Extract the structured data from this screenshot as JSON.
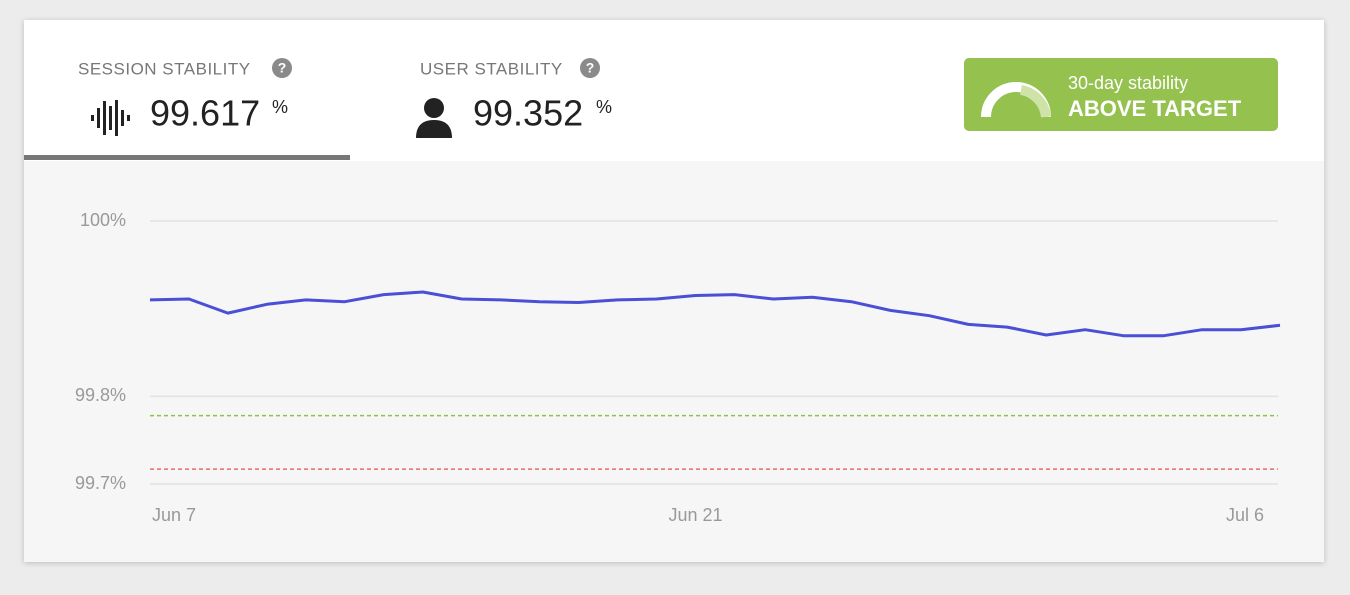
{
  "header": {
    "tabs": [
      {
        "label": "SESSION STABILITY",
        "help": "?",
        "value": "99.617",
        "unit": "%"
      },
      {
        "label": "USER STABILITY",
        "help": "?",
        "value": "99.352",
        "unit": "%"
      }
    ],
    "badge": {
      "caption": "30-day stability",
      "status": "ABOVE TARGET"
    }
  },
  "chart_data": {
    "type": "line",
    "categories": [
      "Jun 7",
      null,
      null,
      null,
      null,
      null,
      null,
      null,
      null,
      null,
      null,
      null,
      null,
      null,
      "Jun 21",
      null,
      null,
      null,
      null,
      null,
      null,
      null,
      null,
      null,
      null,
      null,
      null,
      null,
      null,
      "Jul 6"
    ],
    "series": [
      {
        "color": "#4a4fd6",
        "values": [
          99.91,
          99.911,
          99.895,
          99.905,
          99.91,
          99.908,
          99.916,
          99.919,
          99.911,
          99.91,
          99.908,
          99.907,
          99.91,
          99.911,
          99.915,
          99.916,
          99.911,
          99.913,
          99.908,
          99.898,
          99.892,
          99.882,
          99.879,
          99.87,
          99.876,
          99.869,
          99.869,
          99.876,
          99.876,
          99.881
        ]
      }
    ],
    "thresholds": [
      {
        "value": 99.778,
        "color": "#8bc34a"
      },
      {
        "value": 99.717,
        "color": "#e86a6a"
      }
    ],
    "ylim": [
      99.7,
      100
    ],
    "yticks": [
      {
        "value": 100,
        "label": "100%"
      },
      {
        "value": 99.8,
        "label": "99.8%"
      },
      {
        "value": 99.7,
        "label": "99.7%"
      }
    ],
    "grid": true
  }
}
